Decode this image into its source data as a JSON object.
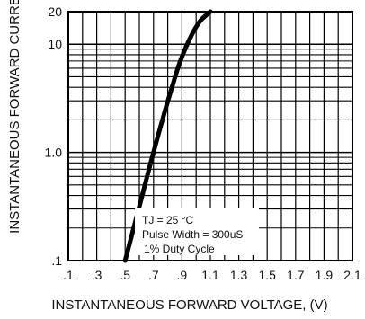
{
  "chart_data": {
    "type": "line",
    "title": "",
    "xlabel": "INSTANTANEOUS FORWARD VOLTAGE, (V)",
    "ylabel": "INSTANTANEOUS FORWARD CURRENT",
    "xlim": [
      0.1,
      2.1
    ],
    "ylim": [
      0.1,
      20
    ],
    "yscale": "log",
    "grid": true,
    "x_ticks": [
      ".1",
      ".3",
      ".5",
      ".7",
      ".9",
      "1.1",
      "1.3",
      "1.5",
      "1.7",
      "1.9",
      "2.1"
    ],
    "x_tick_values": [
      0.1,
      0.3,
      0.5,
      0.7,
      0.9,
      1.1,
      1.3,
      1.5,
      1.7,
      1.9,
      2.1
    ],
    "y_ticks": [
      ".1",
      "1.0",
      "10",
      "20"
    ],
    "y_tick_values": [
      0.1,
      1.0,
      10,
      20
    ],
    "series": [
      {
        "name": "",
        "color": "#000000",
        "x": [
          0.5,
          0.56,
          0.62,
          0.68,
          0.73,
          0.78,
          0.83,
          0.88,
          0.93,
          0.98,
          1.03,
          1.1
        ],
        "y": [
          0.1,
          0.2,
          0.4,
          0.8,
          1.4,
          2.4,
          4.0,
          6.5,
          9.5,
          13.0,
          16.5,
          20.0
        ]
      }
    ],
    "annotations": [
      "TJ = 25 °C",
      "Pulse Width = 300uS",
      "1% Duty Cycle"
    ]
  }
}
